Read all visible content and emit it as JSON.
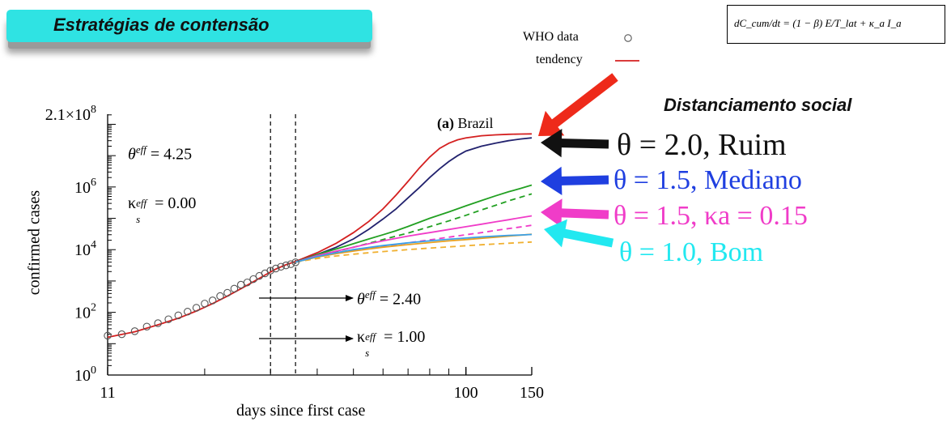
{
  "banner": {
    "title": "Estratégias de contensão"
  },
  "formula": {
    "text": "dC_cum/dt = (1 − β) E/T_lat + κ_a I_a"
  },
  "legend": {
    "items": [
      {
        "label": "WHO data",
        "marker": "circle"
      },
      {
        "label": "tendency",
        "marker": "line",
        "color": "#d42020"
      }
    ]
  },
  "panel_label": {
    "letter": "(a)",
    "country": "Brazil"
  },
  "annotations": {
    "left_theta": "θ",
    "left_theta_sup": "eff",
    "left_theta_val": "= 4.25",
    "left_kappa": "κ",
    "left_kappa_sub": "s",
    "left_kappa_sup": "eff",
    "left_kappa_val": "= 0.00",
    "right_theta": "θ",
    "right_theta_sup": "eff",
    "right_theta_val": "= 2.40",
    "right_kappa": "κ",
    "right_kappa_sub": "s",
    "right_kappa_sup": "eff",
    "right_kappa_val": "= 1.00"
  },
  "scenarios": {
    "heading": "Distanciamento social",
    "items": [
      {
        "label": "θ = 2.0, Ruim",
        "color": "#111111"
      },
      {
        "label": "θ = 1.5, Mediano",
        "color": "#1f3fe0"
      },
      {
        "label": "θ = 1.5, κa = 0.15",
        "color": "#f03cc8"
      },
      {
        "label": "θ = 1.0, Bom",
        "color": "#22e8f0"
      }
    ]
  },
  "chart_data": {
    "type": "line",
    "xscale": "log",
    "yscale": "log",
    "xlabel": "days since first case",
    "ylabel": "confirmed cases",
    "xlim": [
      11,
      150
    ],
    "ylim": [
      1,
      210000000
    ],
    "xticks": [
      {
        "value": 11,
        "label": "11"
      },
      {
        "value": 100,
        "label": "100"
      },
      {
        "value": 150,
        "label": "150"
      }
    ],
    "yticks": [
      {
        "value": 1,
        "label": "10",
        "exp": "0"
      },
      {
        "value": 100,
        "label": "10",
        "exp": "2"
      },
      {
        "value": 10000,
        "label": "10",
        "exp": "4"
      },
      {
        "value": 1000000,
        "label": "10",
        "exp": "6"
      },
      {
        "value": 210000000,
        "label": "2.1×10",
        "exp": "8"
      }
    ],
    "vlines": [
      30,
      35
    ],
    "who_data": {
      "x": [
        11,
        12,
        13,
        14,
        15,
        16,
        17,
        18,
        19,
        20,
        21,
        22,
        23,
        24,
        25,
        26,
        27,
        28,
        29,
        30,
        31,
        32,
        33,
        34,
        35
      ],
      "y": [
        18,
        20,
        25,
        35,
        45,
        60,
        80,
        105,
        140,
        190,
        240,
        330,
        420,
        570,
        760,
        900,
        1150,
        1450,
        1750,
        2150,
        2500,
        2850,
        3150,
        3450,
        3950
      ]
    },
    "series": [
      {
        "name": "tendency",
        "color": "#d42020",
        "dash": false,
        "x": [
          11,
          13,
          15,
          17,
          19,
          21,
          23,
          25,
          27,
          29,
          31,
          33,
          35,
          40,
          45,
          50,
          55,
          60,
          65,
          70,
          75,
          80,
          85,
          90,
          95,
          100,
          110,
          120,
          130,
          140,
          150
        ],
        "y": [
          16,
          24,
          40,
          65,
          110,
          190,
          330,
          570,
          950,
          1550,
          2400,
          3300,
          4200,
          8000,
          16000,
          35000,
          80000,
          200000,
          550000,
          1500000,
          4000000,
          9000000,
          17000000,
          25000000,
          32000000,
          37000000,
          43000000,
          46000000,
          48000000,
          49000000,
          49500000
        ]
      },
      {
        "name": "θ = 2.0, Ruim",
        "color": "#22226e",
        "dash": false,
        "x": [
          35,
          40,
          45,
          50,
          55,
          60,
          65,
          70,
          75,
          80,
          85,
          90,
          95,
          100,
          110,
          120,
          130,
          140,
          150
        ],
        "y": [
          4000,
          7000,
          12000,
          22000,
          45000,
          95000,
          200000,
          450000,
          950000,
          2000000,
          3800000,
          6500000,
          10000000,
          14000000,
          20000000,
          25000000,
          30000000,
          34000000,
          37000000
        ]
      },
      {
        "name": "θ = 1.5, Mediano",
        "color": "#22a022",
        "dash": false,
        "x": [
          35,
          40,
          45,
          50,
          55,
          60,
          65,
          70,
          75,
          80,
          90,
          100,
          110,
          120,
          130,
          140,
          150
        ],
        "y": [
          4000,
          7000,
          10500,
          15500,
          22000,
          30000,
          40000,
          55000,
          75000,
          100000,
          160000,
          250000,
          370000,
          520000,
          700000,
          900000,
          1150000
        ]
      },
      {
        "name": "θ = 1.5, Mediano (dashed)",
        "color": "#22a022",
        "dash": true,
        "x": [
          35,
          40,
          45,
          50,
          55,
          60,
          65,
          70,
          75,
          80,
          90,
          100,
          110,
          120,
          130,
          140,
          150
        ],
        "y": [
          4000,
          6200,
          8800,
          12000,
          16000,
          21000,
          27000,
          34000,
          43000,
          54000,
          83000,
          125000,
          185000,
          260000,
          360000,
          470000,
          600000
        ]
      },
      {
        "name": "θ = 1.5, κa = 0.15",
        "color": "#f03cc8",
        "dash": false,
        "x": [
          35,
          40,
          45,
          50,
          55,
          60,
          65,
          70,
          75,
          80,
          90,
          100,
          110,
          120,
          130,
          140,
          150
        ],
        "y": [
          4000,
          6500,
          9000,
          12000,
          15500,
          19000,
          23000,
          27000,
          31000,
          35000,
          44000,
          54000,
          65000,
          77000,
          90000,
          105000,
          120000
        ]
      },
      {
        "name": "θ = 1.5, κa = 0.15 (dashed)",
        "color": "#f03cc8",
        "dash": true,
        "x": [
          35,
          40,
          45,
          50,
          55,
          60,
          65,
          70,
          75,
          80,
          90,
          100,
          110,
          120,
          130,
          140,
          150
        ],
        "y": [
          4000,
          5800,
          7500,
          9300,
          11000,
          12800,
          14600,
          16500,
          18500,
          20500,
          25000,
          30000,
          35000,
          41000,
          47000,
          53000,
          60000
        ]
      },
      {
        "name": "θ = 1.0, Bom",
        "color": "#e8a020",
        "dash": false,
        "x": [
          35,
          40,
          45,
          50,
          55,
          60,
          70,
          80,
          90,
          100,
          110,
          120,
          130,
          140,
          150
        ],
        "y": [
          4000,
          5800,
          7500,
          9000,
          10500,
          12000,
          14500,
          16800,
          19000,
          21000,
          23000,
          25000,
          27000,
          29000,
          31000
        ]
      },
      {
        "name": "θ = 1.0, Bom (dashed)",
        "color": "#f0b030",
        "dash": true,
        "x": [
          35,
          40,
          45,
          50,
          55,
          60,
          70,
          80,
          90,
          100,
          110,
          120,
          130,
          140,
          150
        ],
        "y": [
          4000,
          5200,
          6300,
          7200,
          8000,
          8700,
          10000,
          11200,
          12300,
          13300,
          14300,
          15200,
          16000,
          16800,
          17500
        ]
      },
      {
        "name": "θ = 1.0, Bom (blue)",
        "color": "#3aa0e8",
        "dash": false,
        "x": [
          35,
          40,
          45,
          50,
          55,
          60,
          70,
          80,
          90,
          100,
          110,
          120,
          130,
          140,
          150
        ],
        "y": [
          4000,
          6000,
          8000,
          10000,
          11800,
          13500,
          16500,
          19000,
          21500,
          23500,
          25500,
          27000,
          28500,
          29500,
          30500
        ]
      }
    ]
  }
}
